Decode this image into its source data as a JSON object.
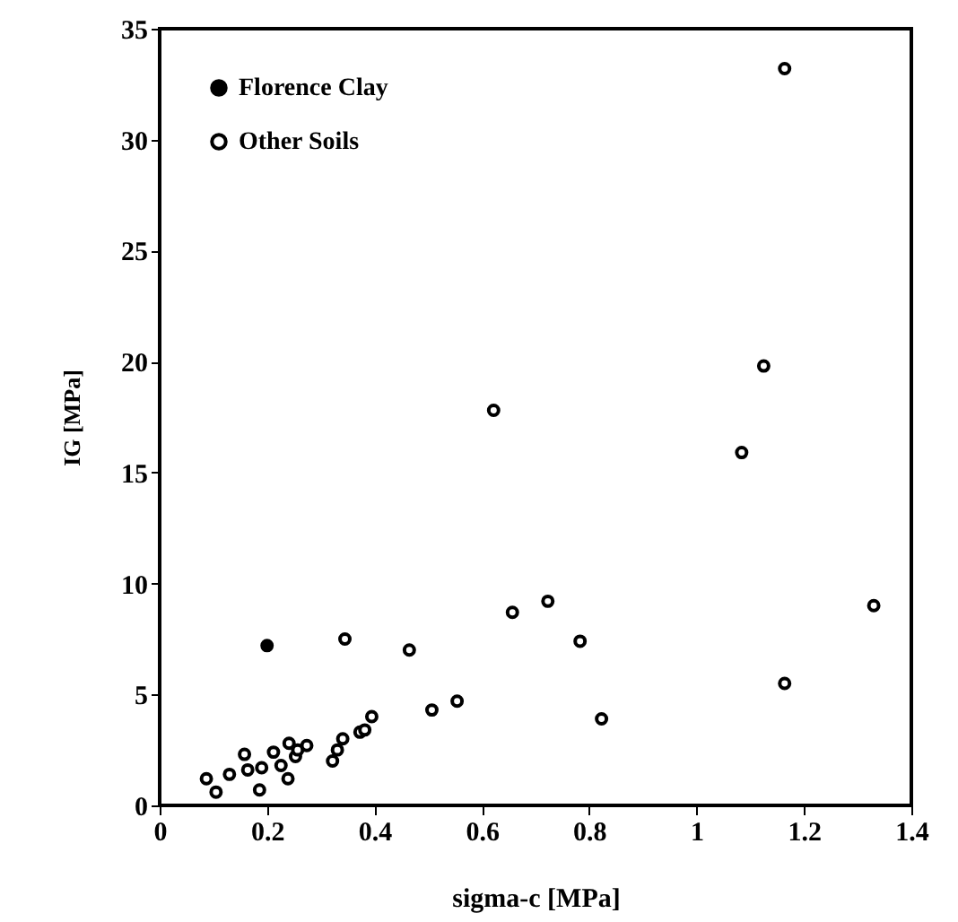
{
  "chart_data": {
    "type": "scatter",
    "xlabel": "sigma-c [MPa]",
    "ylabel": "IG [MPa]",
    "xlim": [
      0,
      1.4
    ],
    "ylim": [
      0,
      35
    ],
    "xticks": [
      0,
      0.2,
      0.4,
      0.6,
      0.8,
      1,
      1.2,
      1.4
    ],
    "yticks": [
      0,
      5,
      10,
      15,
      20,
      25,
      30,
      35
    ],
    "grid": false,
    "legend": "top left",
    "marker": "circle",
    "series": [
      {
        "name": "Florence Clay",
        "color": "#000000",
        "x": [
          0.2
        ],
        "values": [
          7.2
        ]
      },
      {
        "name": "Other Soils",
        "color": "#000000",
        "x": [
          0.087,
          0.105,
          0.13,
          0.158,
          0.164,
          0.186,
          0.19,
          0.212,
          0.226,
          0.239,
          0.241,
          0.253,
          0.257,
          0.274,
          0.322,
          0.331,
          0.341,
          0.345,
          0.373,
          0.382,
          0.395,
          0.465,
          0.507,
          0.554,
          0.622,
          0.657,
          0.723,
          0.783,
          0.823,
          1.084,
          1.125,
          1.164,
          1.164,
          1.33
        ],
        "values": [
          1.2,
          0.6,
          1.4,
          2.3,
          1.6,
          0.7,
          1.7,
          2.4,
          1.8,
          1.2,
          2.8,
          2.2,
          2.5,
          2.7,
          2.0,
          2.5,
          3.0,
          7.5,
          3.3,
          3.4,
          4.0,
          7.0,
          4.3,
          4.7,
          17.8,
          8.7,
          9.2,
          7.4,
          3.9,
          15.9,
          19.8,
          33.2,
          5.5,
          9.0
        ]
      }
    ]
  }
}
